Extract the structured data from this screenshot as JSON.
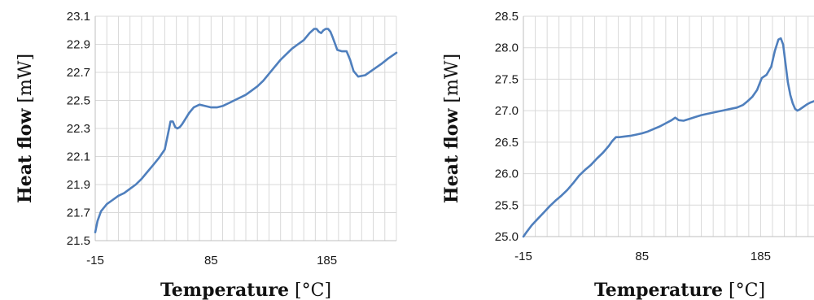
{
  "chart_data": [
    {
      "type": "line",
      "xlabel_bold": "Temperature",
      "xlabel_unit": "[°C]",
      "ylabel_bold": "Heat flow",
      "ylabel_unit": "[mW]",
      "xlim": [
        -15,
        245
      ],
      "ylim": [
        21.5,
        23.1
      ],
      "xticks": [
        -15,
        85,
        185
      ],
      "yticks": [
        "21.5",
        "21.7",
        "21.9",
        "22.1",
        "22.3",
        "22.5",
        "22.7",
        "22.9",
        "23.1"
      ],
      "grid": true,
      "color": "#4f7fbd",
      "series": [
        {
          "x": [
            -15,
            -13,
            -10,
            -5,
            0,
            5,
            10,
            15,
            20,
            25,
            30,
            35,
            40,
            45,
            48,
            50,
            52,
            54,
            56,
            58,
            60,
            63,
            66,
            70,
            75,
            80,
            85,
            90,
            95,
            100,
            105,
            110,
            115,
            120,
            125,
            130,
            135,
            140,
            145,
            150,
            155,
            160,
            165,
            170,
            174,
            176,
            178,
            180,
            182,
            184,
            186,
            188,
            190,
            194,
            198,
            202,
            205,
            208,
            212,
            218,
            225,
            232,
            238,
            245
          ],
          "y": [
            21.56,
            21.64,
            21.71,
            21.76,
            21.79,
            21.82,
            21.84,
            21.87,
            21.9,
            21.94,
            21.99,
            22.04,
            22.09,
            22.15,
            22.27,
            22.35,
            22.35,
            22.31,
            22.3,
            22.31,
            22.33,
            22.37,
            22.41,
            22.45,
            22.47,
            22.46,
            22.45,
            22.45,
            22.46,
            22.48,
            22.5,
            22.52,
            22.54,
            22.57,
            22.6,
            22.64,
            22.69,
            22.74,
            22.79,
            22.83,
            22.87,
            22.9,
            22.93,
            22.98,
            23.01,
            23.01,
            22.99,
            22.98,
            23.0,
            23.01,
            23.01,
            22.99,
            22.95,
            22.86,
            22.85,
            22.85,
            22.79,
            22.71,
            22.67,
            22.68,
            22.72,
            22.76,
            22.8,
            22.84
          ]
        }
      ]
    },
    {
      "type": "line",
      "xlabel_bold": "Temperature",
      "xlabel_unit": "[°C]",
      "ylabel_bold": "Heat flow",
      "ylabel_unit": "[mW]",
      "xlim": [
        -15,
        230
      ],
      "ylim": [
        25.0,
        28.5
      ],
      "xticks": [
        -15,
        85,
        185
      ],
      "yticks": [
        "25.0",
        "25.5",
        "26.0",
        "26.5",
        "27.0",
        "27.5",
        "28.0",
        "28.5"
      ],
      "grid": true,
      "color": "#4f7fbd",
      "series": [
        {
          "x": [
            -15,
            -12,
            -8,
            -3,
            2,
            7,
            12,
            17,
            22,
            27,
            32,
            37,
            42,
            47,
            52,
            57,
            60,
            63,
            66,
            70,
            75,
            80,
            85,
            90,
            95,
            100,
            105,
            110,
            113,
            116,
            120,
            125,
            130,
            135,
            140,
            145,
            150,
            155,
            160,
            165,
            170,
            174,
            178,
            182,
            186,
            190,
            194,
            197,
            200,
            202,
            204,
            206,
            208,
            210,
            212,
            214,
            216,
            218,
            221,
            224,
            227,
            230
          ],
          "y": [
            25.0,
            25.08,
            25.18,
            25.28,
            25.38,
            25.48,
            25.57,
            25.65,
            25.74,
            25.85,
            25.97,
            26.06,
            26.14,
            26.24,
            26.33,
            26.44,
            26.52,
            26.58,
            26.58,
            26.59,
            26.6,
            26.62,
            26.64,
            26.67,
            26.71,
            26.75,
            26.8,
            26.85,
            26.89,
            26.85,
            26.84,
            26.87,
            26.9,
            26.93,
            26.95,
            26.97,
            26.99,
            27.01,
            27.03,
            27.05,
            27.09,
            27.15,
            27.22,
            27.33,
            27.52,
            27.57,
            27.7,
            27.95,
            28.13,
            28.15,
            28.05,
            27.75,
            27.45,
            27.25,
            27.12,
            27.03,
            27.0,
            27.02,
            27.06,
            27.1,
            27.13,
            27.15
          ]
        }
      ]
    }
  ]
}
